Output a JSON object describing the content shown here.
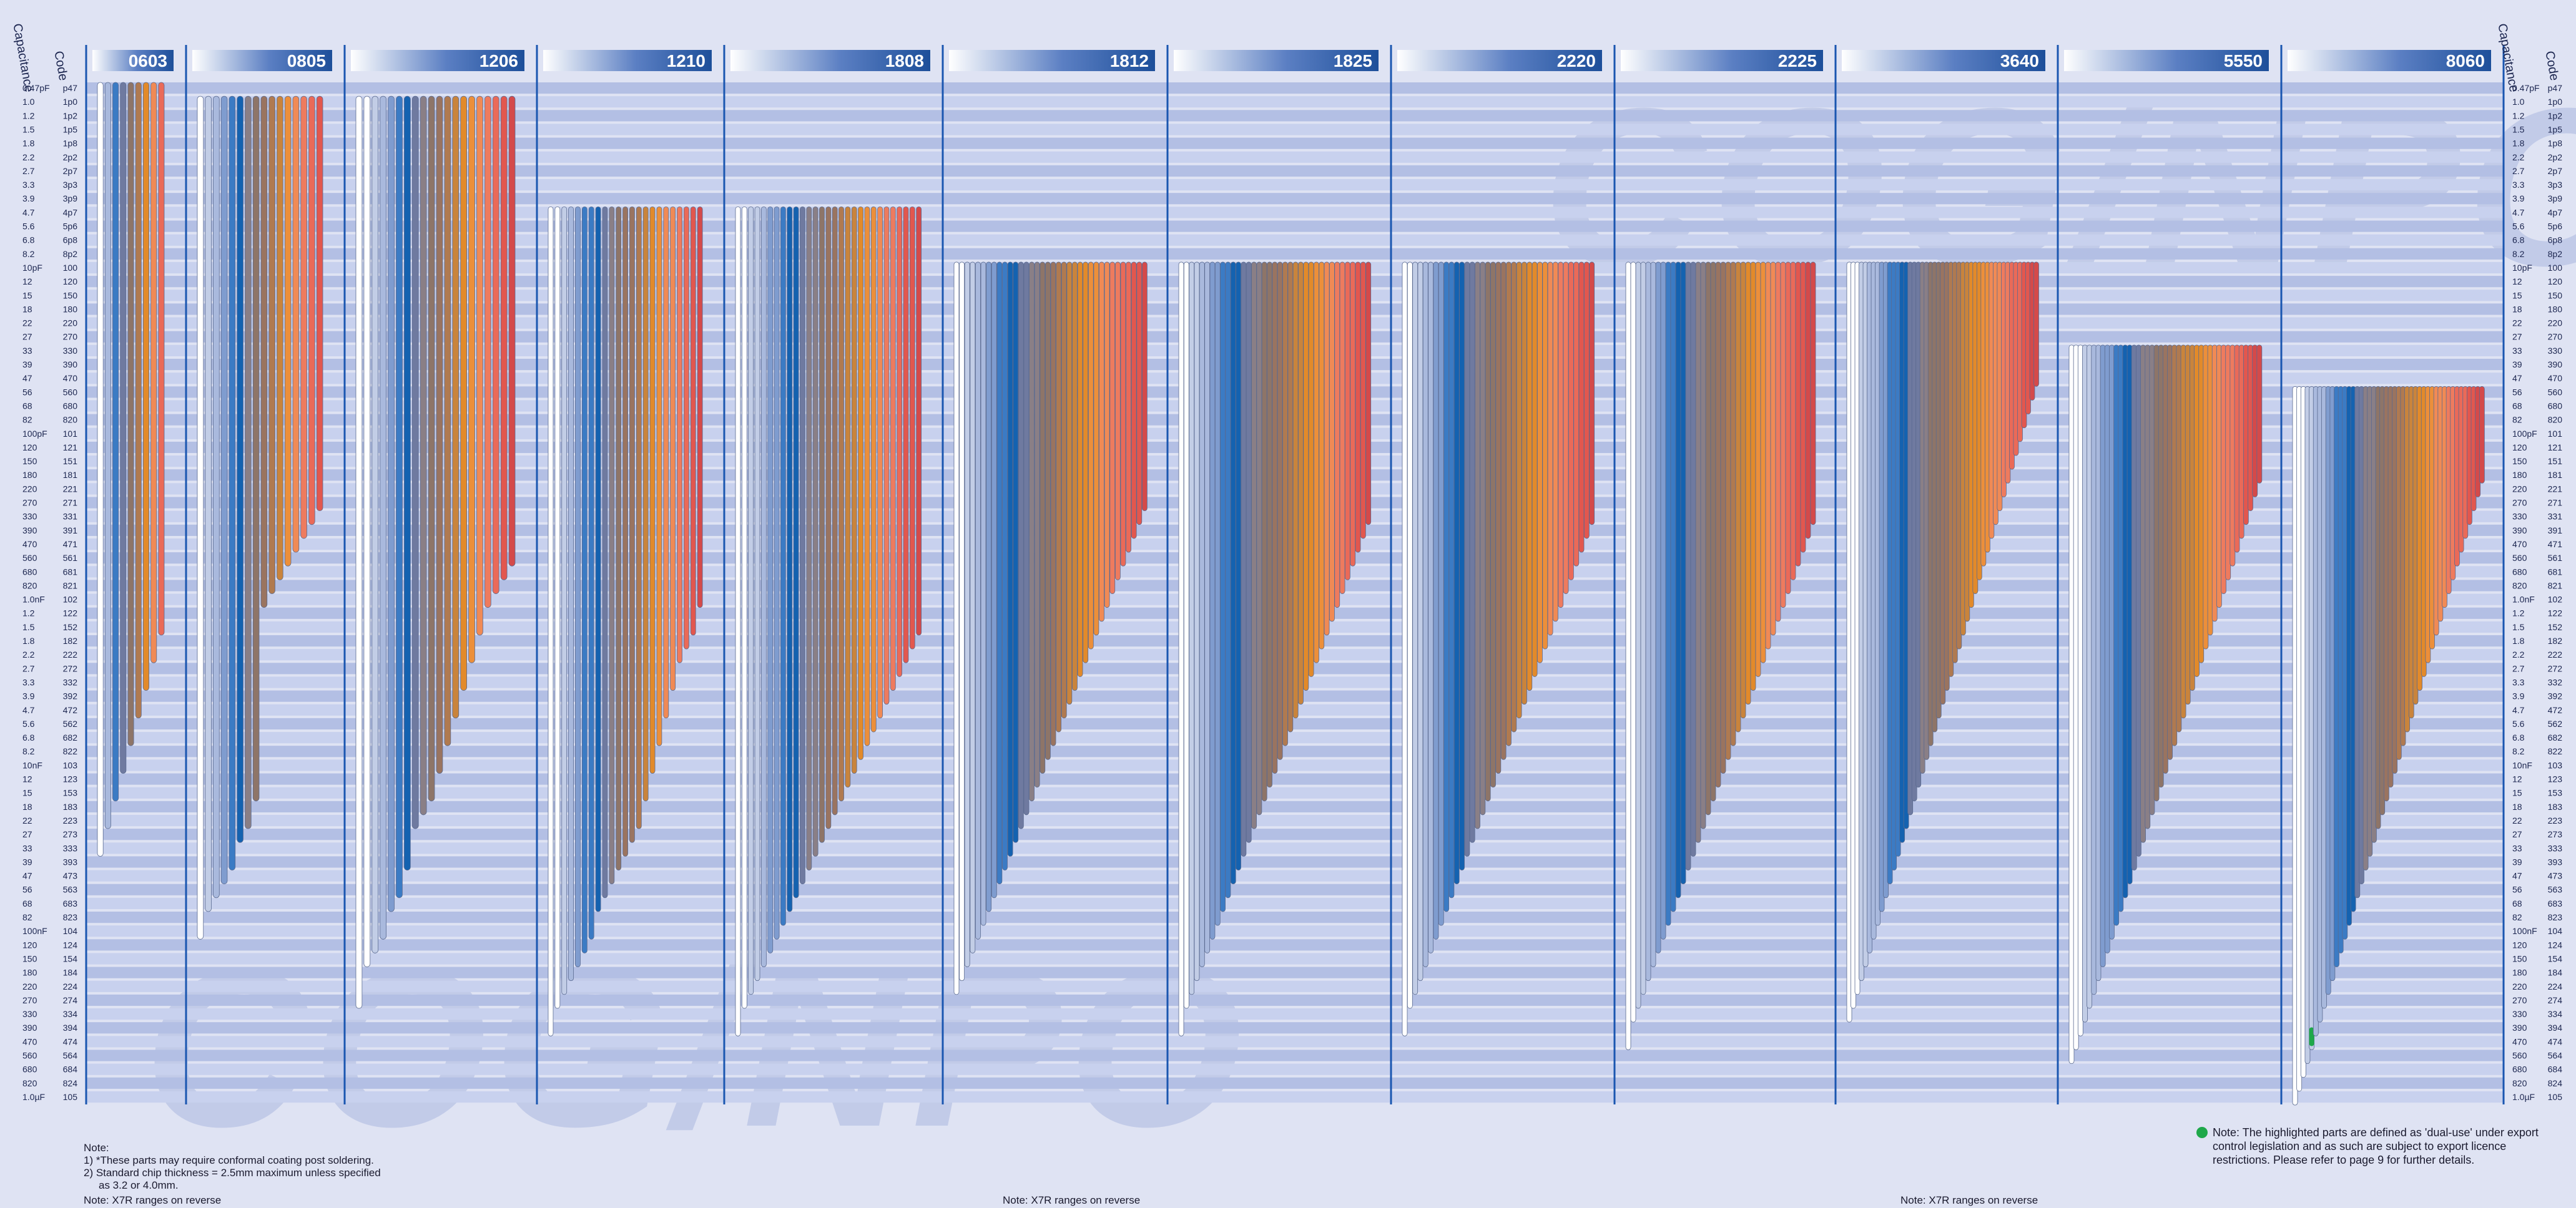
{
  "watermark": "COG/NPO",
  "side_headers": {
    "capacitance": "Capacitance",
    "code": "Code"
  },
  "capacitance_rows": [
    {
      "cap": "0.47pF",
      "code": "p47"
    },
    {
      "cap": "1.0",
      "code": "1p0"
    },
    {
      "cap": "1.2",
      "code": "1p2"
    },
    {
      "cap": "1.5",
      "code": "1p5"
    },
    {
      "cap": "1.8",
      "code": "1p8"
    },
    {
      "cap": "2.2",
      "code": "2p2"
    },
    {
      "cap": "2.7",
      "code": "2p7"
    },
    {
      "cap": "3.3",
      "code": "3p3"
    },
    {
      "cap": "3.9",
      "code": "3p9"
    },
    {
      "cap": "4.7",
      "code": "4p7"
    },
    {
      "cap": "5.6",
      "code": "5p6"
    },
    {
      "cap": "6.8",
      "code": "6p8"
    },
    {
      "cap": "8.2",
      "code": "8p2"
    },
    {
      "cap": "10pF",
      "code": "100"
    },
    {
      "cap": "12",
      "code": "120"
    },
    {
      "cap": "15",
      "code": "150"
    },
    {
      "cap": "18",
      "code": "180"
    },
    {
      "cap": "22",
      "code": "220"
    },
    {
      "cap": "27",
      "code": "270"
    },
    {
      "cap": "33",
      "code": "330"
    },
    {
      "cap": "39",
      "code": "390"
    },
    {
      "cap": "47",
      "code": "470"
    },
    {
      "cap": "56",
      "code": "560"
    },
    {
      "cap": "68",
      "code": "680"
    },
    {
      "cap": "82",
      "code": "820"
    },
    {
      "cap": "100pF",
      "code": "101"
    },
    {
      "cap": "120",
      "code": "121"
    },
    {
      "cap": "150",
      "code": "151"
    },
    {
      "cap": "180",
      "code": "181"
    },
    {
      "cap": "220",
      "code": "221"
    },
    {
      "cap": "270",
      "code": "271"
    },
    {
      "cap": "330",
      "code": "331"
    },
    {
      "cap": "390",
      "code": "391"
    },
    {
      "cap": "470",
      "code": "471"
    },
    {
      "cap": "560",
      "code": "561"
    },
    {
      "cap": "680",
      "code": "681"
    },
    {
      "cap": "820",
      "code": "821"
    },
    {
      "cap": "1.0nF",
      "code": "102"
    },
    {
      "cap": "1.2",
      "code": "122"
    },
    {
      "cap": "1.5",
      "code": "152"
    },
    {
      "cap": "1.8",
      "code": "182"
    },
    {
      "cap": "2.2",
      "code": "222"
    },
    {
      "cap": "2.7",
      "code": "272"
    },
    {
      "cap": "3.3",
      "code": "332"
    },
    {
      "cap": "3.9",
      "code": "392"
    },
    {
      "cap": "4.7",
      "code": "472"
    },
    {
      "cap": "5.6",
      "code": "562"
    },
    {
      "cap": "6.8",
      "code": "682"
    },
    {
      "cap": "8.2",
      "code": "822"
    },
    {
      "cap": "10nF",
      "code": "103"
    },
    {
      "cap": "12",
      "code": "123"
    },
    {
      "cap": "15",
      "code": "153"
    },
    {
      "cap": "18",
      "code": "183"
    },
    {
      "cap": "22",
      "code": "223"
    },
    {
      "cap": "27",
      "code": "273"
    },
    {
      "cap": "33",
      "code": "333"
    },
    {
      "cap": "39",
      "code": "393"
    },
    {
      "cap": "47",
      "code": "473"
    },
    {
      "cap": "56",
      "code": "563"
    },
    {
      "cap": "68",
      "code": "683"
    },
    {
      "cap": "82",
      "code": "823"
    },
    {
      "cap": "100nF",
      "code": "104"
    },
    {
      "cap": "120",
      "code": "124"
    },
    {
      "cap": "150",
      "code": "154"
    },
    {
      "cap": "180",
      "code": "184"
    },
    {
      "cap": "220",
      "code": "224"
    },
    {
      "cap": "270",
      "code": "274"
    },
    {
      "cap": "330",
      "code": "334"
    },
    {
      "cap": "390",
      "code": "394"
    },
    {
      "cap": "470",
      "code": "474"
    },
    {
      "cap": "560",
      "code": "564"
    },
    {
      "cap": "680",
      "code": "684"
    },
    {
      "cap": "820",
      "code": "824"
    },
    {
      "cap": "1.0µF",
      "code": "105"
    }
  ],
  "colors": {
    "band_a": "#b3bfe4",
    "band_b": "#c8d1ee",
    "header": "#1d4f9a",
    "divider": "#1a56b0",
    "text": "#1c2650",
    "ramp": [
      "#ffffff",
      "#c2cde6",
      "#a9b9dd",
      "#7f9ccf",
      "#3b7bc4",
      "#1462b0",
      "#6f7aa0",
      "#8a7f86",
      "#8e7568",
      "#9a7460",
      "#b07a50",
      "#c9843c",
      "#e28a2a",
      "#ec8f3a",
      "#f08a55",
      "#ee7b5e",
      "#ea6a58",
      "#e2574e",
      "#d44a4a"
    ],
    "dual_use": "#1fa84a"
  },
  "chart_data": {
    "type": "bar",
    "orientation": "range-columns",
    "watermark": "COG/NPO",
    "case_sizes": [
      {
        "name": "0603",
        "min_code": "p47",
        "bars_max": [
          "333",
          "223",
          "153",
          "103",
          "682",
          "472",
          "332",
          "222",
          "152"
        ]
      },
      {
        "name": "0805",
        "min_code": "1p0",
        "bars_max": [
          "104",
          "683",
          "563",
          "473",
          "393",
          "273",
          "223",
          "153",
          "102",
          "821",
          "681",
          "561",
          "471",
          "391",
          "331",
          "271"
        ]
      },
      {
        "name": "1206",
        "min_code": "1p0",
        "bars_max": [
          "274",
          "154",
          "124",
          "104",
          "683",
          "563",
          "393",
          "223",
          "183",
          "153",
          "103",
          "682",
          "472",
          "332",
          "222",
          "152",
          "102",
          "821",
          "681",
          "561"
        ]
      },
      {
        "name": "1210",
        "min_code": "4p7",
        "bars_max": [
          "394",
          "274",
          "224",
          "184",
          "154",
          "124",
          "104",
          "683",
          "563",
          "473",
          "393",
          "333",
          "273",
          "223",
          "153",
          "103",
          "682",
          "472",
          "332",
          "222",
          "182",
          "152",
          "102"
        ]
      },
      {
        "name": "1808",
        "min_code": "4p7",
        "bars_max": [
          "394",
          "274",
          "224",
          "184",
          "154",
          "124",
          "104",
          "823",
          "683",
          "563",
          "473",
          "393",
          "333",
          "273",
          "223",
          "183",
          "153",
          "123",
          "103",
          "822",
          "682",
          "562",
          "472",
          "392",
          "332",
          "272",
          "222",
          "182",
          "152"
        ]
      },
      {
        "name": "1812",
        "min_code": "100",
        "bars_max": [
          "224",
          "184",
          "154",
          "124",
          "104",
          "823",
          "683",
          "563",
          "473",
          "393",
          "333",
          "273",
          "223",
          "183",
          "153",
          "123",
          "103",
          "822",
          "682",
          "562",
          "472",
          "392",
          "332",
          "272",
          "222",
          "182",
          "152",
          "122",
          "102",
          "821",
          "681",
          "561",
          "471",
          "391",
          "331",
          "271"
        ]
      },
      {
        "name": "1825",
        "min_code": "100",
        "bars_max": [
          "394",
          "274",
          "224",
          "184",
          "154",
          "124",
          "104",
          "823",
          "683",
          "563",
          "473",
          "393",
          "333",
          "273",
          "223",
          "183",
          "153",
          "123",
          "103",
          "822",
          "682",
          "562",
          "472",
          "392",
          "332",
          "272",
          "222",
          "182",
          "152",
          "122",
          "102",
          "821",
          "681",
          "561",
          "471",
          "391",
          "331"
        ]
      },
      {
        "name": "2220",
        "min_code": "100",
        "bars_max": [
          "394",
          "274",
          "224",
          "184",
          "154",
          "124",
          "104",
          "823",
          "683",
          "563",
          "473",
          "393",
          "333",
          "273",
          "223",
          "183",
          "153",
          "123",
          "103",
          "822",
          "682",
          "562",
          "472",
          "392",
          "332",
          "272",
          "222",
          "182",
          "152",
          "122",
          "102",
          "821",
          "681",
          "561",
          "471",
          "391",
          "331"
        ]
      },
      {
        "name": "2225",
        "min_code": "100",
        "bars_max": [
          "474",
          "334",
          "274",
          "224",
          "184",
          "154",
          "124",
          "104",
          "823",
          "683",
          "563",
          "473",
          "393",
          "333",
          "273",
          "223",
          "183",
          "153",
          "123",
          "103",
          "822",
          "682",
          "562",
          "472",
          "392",
          "332",
          "272",
          "222",
          "182",
          "152",
          "122",
          "102",
          "821",
          "681",
          "561",
          "471",
          "391",
          "331"
        ]
      },
      {
        "name": "3640",
        "min_code": "100",
        "bars_max": [
          "334",
          "274",
          "224",
          "184",
          "154",
          "124",
          "104",
          "823",
          "683",
          "563",
          "473",
          "393",
          "333",
          "273",
          "223",
          "183",
          "153",
          "123",
          "103",
          "822",
          "682",
          "562",
          "472",
          "392",
          "332",
          "272",
          "222",
          "182",
          "152",
          "122",
          "102",
          "821",
          "681",
          "561",
          "471",
          "391",
          "331",
          "271",
          "221",
          "181",
          "151",
          "121",
          "101",
          "820",
          "680",
          "560",
          "470"
        ]
      },
      {
        "name": "5550",
        "min_code": "330",
        "bars_max": [
          "564",
          "474",
          "394",
          "334",
          "274",
          "224",
          "184",
          "154",
          "124",
          "104",
          "823",
          "683",
          "563",
          "473",
          "393",
          "333",
          "273",
          "223",
          "183",
          "153",
          "123",
          "103",
          "822",
          "682",
          "562",
          "472",
          "392",
          "332",
          "272",
          "222",
          "182",
          "152",
          "122",
          "102",
          "821",
          "681",
          "561",
          "471",
          "391",
          "331",
          "271",
          "221",
          "181"
        ]
      },
      {
        "name": "8060",
        "min_code": "560",
        "bars_max": [
          "105",
          "824",
          "684",
          "564",
          "474",
          "394",
          "334",
          "274",
          "224",
          "184",
          "154",
          "124",
          "104",
          "823",
          "683",
          "563",
          "473",
          "393",
          "333",
          "273",
          "223",
          "183",
          "153",
          "123",
          "103",
          "822",
          "682",
          "562",
          "472",
          "392",
          "332",
          "272",
          "222",
          "182",
          "152",
          "122",
          "102",
          "821",
          "681",
          "561",
          "471",
          "391",
          "331",
          "271",
          "221",
          "181"
        ]
      }
    ],
    "dual_use_part": {
      "case": "8060",
      "bar_index": 4
    }
  },
  "notes": {
    "title": "Note:",
    "line1": "1)  *These parts may require conformal coating post soldering.",
    "line2": "2)  Standard chip thickness = 2.5mm maximum unless specified",
    "line3": "as 3.2 or 4.0mm.",
    "x7r": "Note: X7R ranges on reverse",
    "dual_use_1": "Note: The highlighted parts are defined as 'dual-use' under export",
    "dual_use_2": "control legislation and as such are subject to export licence",
    "dual_use_3": "restrictions. Please refer to page 9 for further details."
  }
}
